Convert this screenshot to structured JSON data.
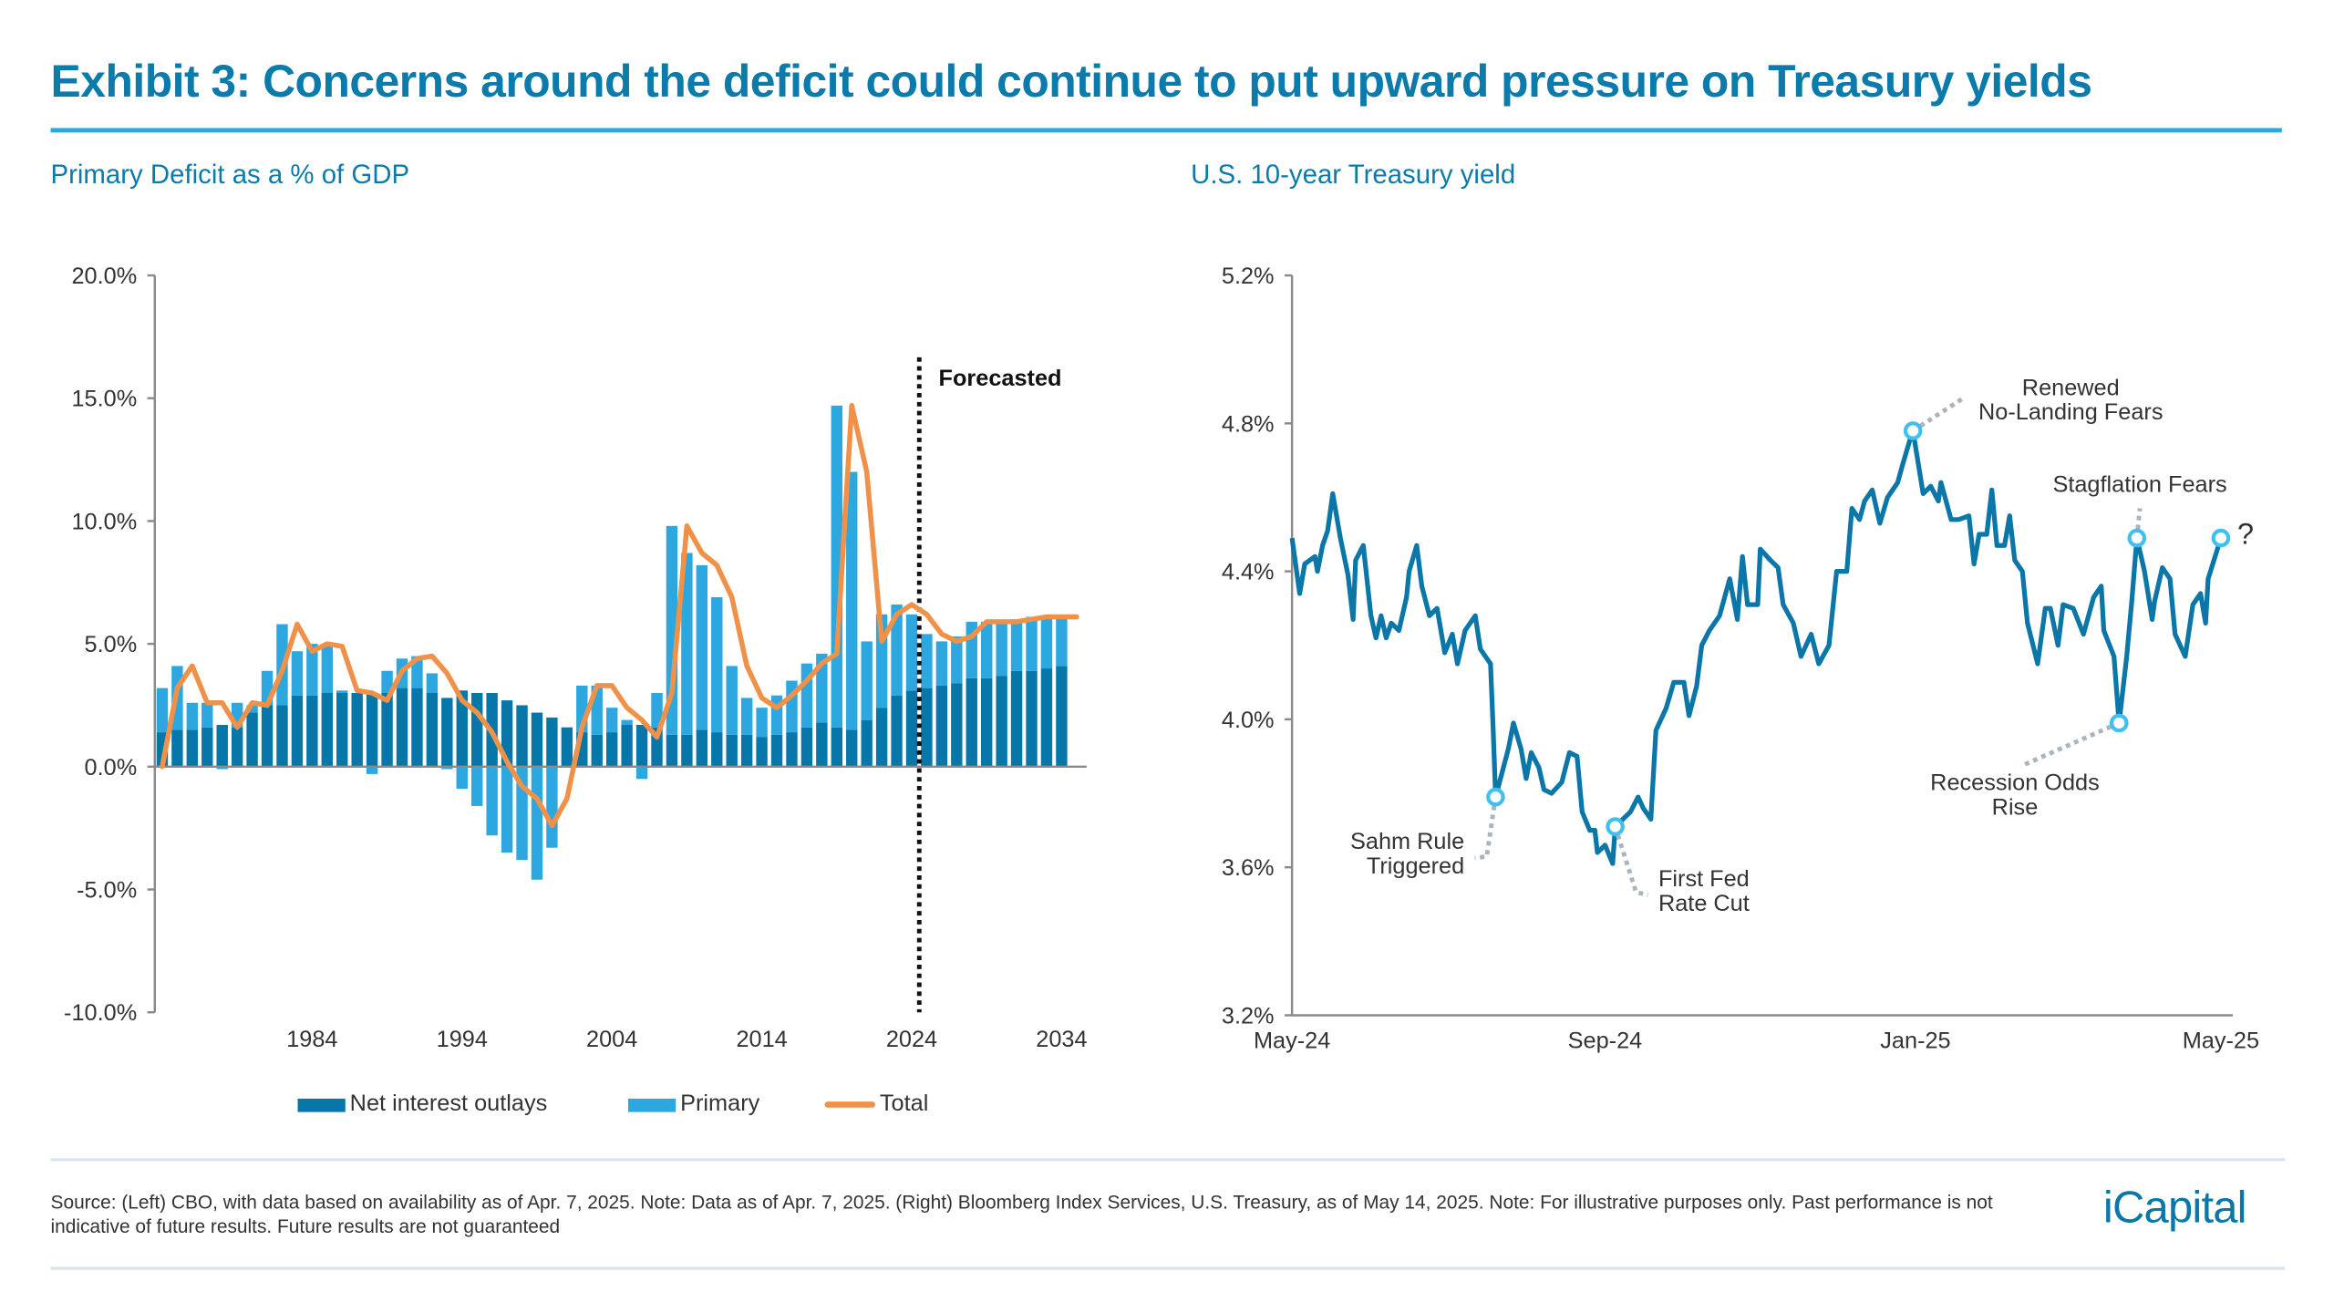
{
  "header": {
    "title": "Exhibit 3: Concerns around the deficit could continue to put upward pressure on Treasury yields"
  },
  "left_subtitle": "Primary Deficit as a % of GDP",
  "right_subtitle": "U.S. 10-year Treasury yield",
  "legend": {
    "net_interest": "Net interest outlays",
    "primary": "Primary",
    "total": "Total"
  },
  "footer": {
    "source": "Source: (Left) CBO, with data based on availability as of Apr. 7, 2025. Note: Data as of Apr. 7, 2025. (Right) Bloomberg Index Services, U.S. Treasury, as of May 14, 2025. Note: For illustrative purposes only. Past performance is not indicative of future results. Future results are not guaranteed",
    "logo": "iCapital"
  },
  "colors": {
    "brand": "#0b7bab",
    "net_interest": "#0777aa",
    "primary": "#2ca7e0",
    "total": "#f0914a",
    "yield_line": "#0b77a8",
    "marker": "#3fc0f0",
    "leader": "#a9b4bd"
  },
  "chart_data": [
    {
      "type": "bar",
      "stacked": true,
      "title": "Primary Deficit as a % of GDP",
      "ylim": [
        -10,
        20
      ],
      "y_ticks": [
        "20.0%",
        "15.0%",
        "10.0%",
        "5.0%",
        "0.0%",
        "-5.0%",
        "-10.0%"
      ],
      "y_tick_values": [
        20,
        15,
        10,
        5,
        0,
        -5,
        -10
      ],
      "x_ticks": [
        "1984",
        "1994",
        "2004",
        "2014",
        "2024",
        "2034"
      ],
      "grid": false,
      "legend_position": "bottom",
      "forecast_start": 2025,
      "forecast_label": "Forecasted",
      "years": [
        1974,
        1975,
        1976,
        1977,
        1978,
        1979,
        1980,
        1981,
        1982,
        1983,
        1984,
        1985,
        1986,
        1987,
        1988,
        1989,
        1990,
        1991,
        1992,
        1993,
        1994,
        1995,
        1996,
        1997,
        1998,
        1999,
        2000,
        2001,
        2002,
        2003,
        2004,
        2005,
        2006,
        2007,
        2008,
        2009,
        2010,
        2011,
        2012,
        2013,
        2014,
        2015,
        2016,
        2017,
        2018,
        2019,
        2020,
        2021,
        2022,
        2023,
        2024,
        2025,
        2026,
        2027,
        2028,
        2029,
        2030,
        2031,
        2032,
        2033,
        2034
      ],
      "series": [
        {
          "name": "Net interest outlays",
          "values": [
            1.4,
            1.5,
            1.5,
            1.6,
            1.7,
            1.6,
            2.2,
            2.5,
            2.5,
            2.9,
            2.9,
            3.0,
            3.0,
            3.0,
            3.0,
            3.0,
            3.2,
            3.2,
            3.0,
            2.8,
            3.1,
            3.0,
            3.0,
            2.7,
            2.5,
            2.2,
            2.0,
            1.6,
            1.4,
            1.3,
            1.4,
            1.7,
            1.7,
            1.6,
            1.3,
            1.3,
            1.5,
            1.4,
            1.3,
            1.3,
            1.2,
            1.3,
            1.4,
            1.6,
            1.8,
            1.6,
            1.5,
            1.9,
            2.4,
            2.9,
            3.1,
            3.2,
            3.3,
            3.4,
            3.6,
            3.6,
            3.7,
            3.9,
            3.9,
            4.0,
            4.1
          ]
        },
        {
          "name": "Primary",
          "values": [
            1.8,
            2.6,
            1.1,
            1.0,
            -0.1,
            1.0,
            0.3,
            1.4,
            3.3,
            1.8,
            2.1,
            1.9,
            0.1,
            0.0,
            -0.3,
            0.9,
            1.2,
            1.3,
            0.8,
            -0.1,
            -0.9,
            -1.6,
            -2.8,
            -3.5,
            -3.8,
            -4.6,
            -3.3,
            0.0,
            1.9,
            2.0,
            1.0,
            0.2,
            -0.5,
            1.4,
            8.5,
            7.4,
            6.7,
            5.5,
            2.8,
            1.5,
            1.2,
            1.6,
            2.1,
            2.6,
            2.8,
            13.1,
            10.5,
            3.2,
            3.8,
            3.7,
            3.1,
            2.2,
            1.8,
            1.9,
            2.3,
            2.3,
            2.2,
            2.1,
            2.2,
            2.1,
            2.0
          ]
        }
      ],
      "total_line": {
        "name": "Total",
        "years": [
          1974,
          1975,
          1976,
          1977,
          1978,
          1979,
          1980,
          1981,
          1982,
          1983,
          1984,
          1985,
          1986,
          1987,
          1988,
          1989,
          1990,
          1991,
          1992,
          1993,
          1994,
          1995,
          1996,
          1997,
          1998,
          1999,
          2000,
          2001,
          2002,
          2003,
          2004,
          2005,
          2006,
          2007,
          2008,
          2009,
          2010,
          2011,
          2012,
          2013,
          2014,
          2015,
          2016,
          2017,
          2018,
          2019,
          2020,
          2021,
          2022,
          2023,
          2024,
          2025,
          2026,
          2027,
          2028,
          2029,
          2030,
          2031,
          2032,
          2033,
          2034,
          2035
        ],
        "values": [
          0,
          3.2,
          4.1,
          2.6,
          2.6,
          1.6,
          2.6,
          2.5,
          3.9,
          5.8,
          4.7,
          5.0,
          4.9,
          3.1,
          3.0,
          2.7,
          3.9,
          4.4,
          4.5,
          3.8,
          2.7,
          2.2,
          1.4,
          0.2,
          -0.8,
          -1.3,
          -2.4,
          -1.3,
          1.6,
          3.3,
          3.3,
          2.4,
          1.9,
          1.2,
          3.0,
          9.8,
          8.7,
          8.2,
          6.9,
          4.1,
          2.8,
          2.4,
          2.9,
          3.5,
          4.2,
          4.6,
          14.7,
          12.0,
          5.1,
          6.2,
          6.6,
          6.2,
          5.4,
          5.1,
          5.3,
          5.9,
          5.9,
          5.9,
          6.0,
          6.1,
          6.1,
          6.1
        ]
      }
    },
    {
      "type": "line",
      "title": "U.S. 10-year Treasury yield",
      "ylim": [
        3.2,
        5.2
      ],
      "y_ticks": [
        "5.2%",
        "4.8%",
        "4.4%",
        "4.0%",
        "3.6%",
        "3.2%"
      ],
      "y_tick_values": [
        5.2,
        4.8,
        4.4,
        4.0,
        3.6,
        3.2
      ],
      "x_range": [
        "2024-05-14",
        "2025-05-14"
      ],
      "x_ticks": [
        {
          "label": "May-24",
          "date": "2024-05-14"
        },
        {
          "label": "Sep-24",
          "date": "2024-09-14"
        },
        {
          "label": "Jan-25",
          "date": "2025-01-14"
        },
        {
          "label": "May-25",
          "date": "2025-05-14"
        }
      ],
      "grid": false,
      "points": [
        [
          "2024-05-14",
          4.49
        ],
        [
          "2024-05-17",
          4.34
        ],
        [
          "2024-05-19",
          4.42
        ],
        [
          "2024-05-23",
          4.44
        ],
        [
          "2024-05-24",
          4.4
        ],
        [
          "2024-05-26",
          4.47
        ],
        [
          "2024-05-28",
          4.51
        ],
        [
          "2024-05-30",
          4.61
        ],
        [
          "2024-06-02",
          4.49
        ],
        [
          "2024-06-05",
          4.39
        ],
        [
          "2024-06-07",
          4.27
        ],
        [
          "2024-06-08",
          4.43
        ],
        [
          "2024-06-11",
          4.47
        ],
        [
          "2024-06-14",
          4.28
        ],
        [
          "2024-06-16",
          4.22
        ],
        [
          "2024-06-18",
          4.28
        ],
        [
          "2024-06-20",
          4.22
        ],
        [
          "2024-06-22",
          4.26
        ],
        [
          "2024-06-25",
          4.24
        ],
        [
          "2024-06-28",
          4.33
        ],
        [
          "2024-06-29",
          4.4
        ],
        [
          "2024-07-02",
          4.47
        ],
        [
          "2024-07-04",
          4.36
        ],
        [
          "2024-07-07",
          4.28
        ],
        [
          "2024-07-10",
          4.3
        ],
        [
          "2024-07-13",
          4.18
        ],
        [
          "2024-07-16",
          4.23
        ],
        [
          "2024-07-18",
          4.15
        ],
        [
          "2024-07-21",
          4.24
        ],
        [
          "2024-07-25",
          4.28
        ],
        [
          "2024-07-27",
          4.19
        ],
        [
          "2024-07-31",
          4.15
        ],
        [
          "2024-08-01",
          3.98
        ],
        [
          "2024-08-02",
          3.79
        ],
        [
          "2024-08-07",
          3.92
        ],
        [
          "2024-08-09",
          3.99
        ],
        [
          "2024-08-12",
          3.92
        ],
        [
          "2024-08-14",
          3.84
        ],
        [
          "2024-08-16",
          3.91
        ],
        [
          "2024-08-19",
          3.87
        ],
        [
          "2024-08-21",
          3.81
        ],
        [
          "2024-08-24",
          3.8
        ],
        [
          "2024-08-28",
          3.83
        ],
        [
          "2024-08-31",
          3.91
        ],
        [
          "2024-09-03",
          3.9
        ],
        [
          "2024-09-05",
          3.75
        ],
        [
          "2024-09-08",
          3.7
        ],
        [
          "2024-09-10",
          3.7
        ],
        [
          "2024-09-11",
          3.64
        ],
        [
          "2024-09-14",
          3.66
        ],
        [
          "2024-09-17",
          3.61
        ],
        [
          "2024-09-18",
          3.71
        ],
        [
          "2024-09-24",
          3.75
        ],
        [
          "2024-09-27",
          3.79
        ],
        [
          "2024-09-29",
          3.76
        ],
        [
          "2024-10-02",
          3.73
        ],
        [
          "2024-10-04",
          3.97
        ],
        [
          "2024-10-08",
          4.03
        ],
        [
          "2024-10-11",
          4.1
        ],
        [
          "2024-10-15",
          4.1
        ],
        [
          "2024-10-17",
          4.01
        ],
        [
          "2024-10-20",
          4.09
        ],
        [
          "2024-10-22",
          4.2
        ],
        [
          "2024-10-25",
          4.24
        ],
        [
          "2024-10-29",
          4.28
        ],
        [
          "2024-11-02",
          4.38
        ],
        [
          "2024-11-05",
          4.27
        ],
        [
          "2024-11-07",
          4.44
        ],
        [
          "2024-11-09",
          4.31
        ],
        [
          "2024-11-13",
          4.31
        ],
        [
          "2024-11-14",
          4.46
        ],
        [
          "2024-11-18",
          4.43
        ],
        [
          "2024-11-21",
          4.41
        ],
        [
          "2024-11-23",
          4.31
        ],
        [
          "2024-11-27",
          4.26
        ],
        [
          "2024-11-30",
          4.17
        ],
        [
          "2024-12-04",
          4.23
        ],
        [
          "2024-12-07",
          4.15
        ],
        [
          "2024-12-11",
          4.2
        ],
        [
          "2024-12-14",
          4.4
        ],
        [
          "2024-12-18",
          4.4
        ],
        [
          "2024-12-20",
          4.57
        ],
        [
          "2024-12-23",
          4.54
        ],
        [
          "2024-12-25",
          4.59
        ],
        [
          "2024-12-28",
          4.62
        ],
        [
          "2024-12-31",
          4.53
        ],
        [
          "2025-01-03",
          4.6
        ],
        [
          "2025-01-07",
          4.64
        ],
        [
          "2025-01-09",
          4.69
        ],
        [
          "2025-01-12",
          4.76
        ],
        [
          "2025-01-13",
          4.78
        ],
        [
          "2025-01-17",
          4.61
        ],
        [
          "2025-01-20",
          4.63
        ],
        [
          "2025-01-23",
          4.59
        ],
        [
          "2025-01-24",
          4.64
        ],
        [
          "2025-01-28",
          4.54
        ],
        [
          "2025-01-31",
          4.54
        ],
        [
          "2025-02-04",
          4.55
        ],
        [
          "2025-02-06",
          4.42
        ],
        [
          "2025-02-08",
          4.5
        ],
        [
          "2025-02-11",
          4.5
        ],
        [
          "2025-02-13",
          4.62
        ],
        [
          "2025-02-15",
          4.47
        ],
        [
          "2025-02-18",
          4.47
        ],
        [
          "2025-02-20",
          4.55
        ],
        [
          "2025-02-22",
          4.43
        ],
        [
          "2025-02-25",
          4.4
        ],
        [
          "2025-02-27",
          4.26
        ],
        [
          "2025-03-03",
          4.15
        ],
        [
          "2025-03-06",
          4.3
        ],
        [
          "2025-03-08",
          4.3
        ],
        [
          "2025-03-11",
          4.2
        ],
        [
          "2025-03-13",
          4.31
        ],
        [
          "2025-03-17",
          4.3
        ],
        [
          "2025-03-21",
          4.23
        ],
        [
          "2025-03-25",
          4.33
        ],
        [
          "2025-03-28",
          4.36
        ],
        [
          "2025-03-29",
          4.24
        ],
        [
          "2025-04-02",
          4.17
        ],
        [
          "2025-04-04",
          3.99
        ],
        [
          "2025-04-07",
          4.17
        ],
        [
          "2025-04-09",
          4.32
        ],
        [
          "2025-04-11",
          4.49
        ],
        [
          "2025-04-14",
          4.4
        ],
        [
          "2025-04-17",
          4.27
        ],
        [
          "2025-04-18",
          4.32
        ],
        [
          "2025-04-21",
          4.41
        ],
        [
          "2025-04-24",
          4.38
        ],
        [
          "2025-04-26",
          4.23
        ],
        [
          "2025-04-30",
          4.17
        ],
        [
          "2025-05-03",
          4.31
        ],
        [
          "2025-05-06",
          4.34
        ],
        [
          "2025-05-08",
          4.26
        ],
        [
          "2025-05-09",
          4.38
        ],
        [
          "2025-05-14",
          4.49
        ]
      ],
      "annotations": [
        {
          "lines": [
            "Sahm Rule",
            "Triggered"
          ],
          "date": "2024-08-02",
          "value": 3.79
        },
        {
          "lines": [
            "First Fed",
            "Rate Cut"
          ],
          "date": "2024-09-18",
          "value": 3.71
        },
        {
          "lines": [
            "Renewed",
            "No-Landing Fears"
          ],
          "date": "2025-01-13",
          "value": 4.78
        },
        {
          "lines": [
            "Recession Odds",
            "Rise"
          ],
          "date": "2025-04-04",
          "value": 3.99
        },
        {
          "lines": [
            "Stagflation Fears"
          ],
          "date": "2025-04-11",
          "value": 4.49
        },
        {
          "lines": [
            "?"
          ],
          "date": "2025-05-14",
          "value": 4.49
        }
      ]
    }
  ]
}
